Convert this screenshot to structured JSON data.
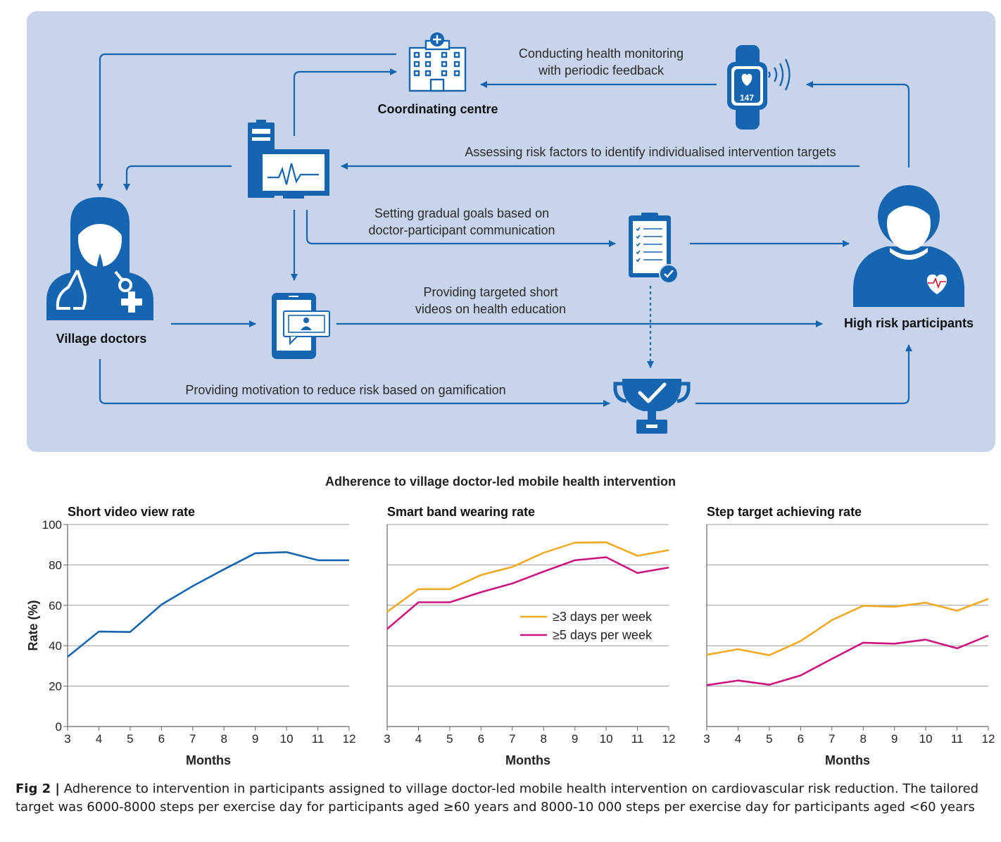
{
  "diagram": {
    "nodes": {
      "coordinating_centre": "Coordinating centre",
      "village_doctors": "Village doctors",
      "high_risk": "High risk participants",
      "watch_value": "147"
    },
    "flows": {
      "monitoring_1": "Conducting health monitoring",
      "monitoring_2": "with periodic feedback",
      "assessing": "Assessing risk factors to identify individualised intervention targets",
      "goals_1": "Setting gradual goals based on",
      "goals_2": "doctor-participant communication",
      "videos_1": "Providing targeted short",
      "videos_2": "videos on health education",
      "motivation": "Providing motivation to reduce risk based on gamification"
    },
    "colors": {
      "panel": "#c8d4ec",
      "accent": "#1565b0",
      "series_orange": "#f0aa22",
      "series_magenta": "#cc1480"
    }
  },
  "charts_title": "Adherence to village doctor-led mobile health intervention",
  "chart_data": [
    {
      "type": "line",
      "title": "Short video view rate",
      "xlabel": "Months",
      "ylabel": "Rate (%)",
      "x": [
        3,
        4,
        5,
        6,
        7,
        8,
        9,
        10,
        11,
        12
      ],
      "ylim": [
        0,
        100
      ],
      "yticks": [
        0,
        20,
        40,
        60,
        80,
        100
      ],
      "grid": true,
      "series": [
        {
          "name": "",
          "color": "#1565b0",
          "values": [
            34.5,
            47,
            46.8,
            60.3,
            69.5,
            77.8,
            85.8,
            86.3,
            82.3,
            82.3
          ]
        }
      ]
    },
    {
      "type": "line",
      "title": "Smart band wearing rate",
      "xlabel": "Months",
      "ylabel": "",
      "x": [
        3,
        4,
        5,
        6,
        7,
        8,
        9,
        10,
        11,
        12
      ],
      "ylim": [
        0,
        100
      ],
      "grid": true,
      "legend": "middle-right",
      "series": [
        {
          "name": "≥3 days per week",
          "color": "#f0aa22",
          "values": [
            56.8,
            68,
            68,
            75,
            79,
            86,
            91,
            91.2,
            84.5,
            87.3
          ]
        },
        {
          "name": "≥5 days per week",
          "color": "#cc1480",
          "values": [
            48.3,
            61.5,
            61.5,
            66.5,
            70.8,
            76.7,
            82.3,
            83.8,
            76,
            78.7
          ]
        }
      ]
    },
    {
      "type": "line",
      "title": "Step target achieving rate",
      "xlabel": "Months",
      "ylabel": "",
      "x": [
        3,
        4,
        5,
        6,
        7,
        8,
        9,
        10,
        11,
        12
      ],
      "ylim": [
        0,
        100
      ],
      "grid": true,
      "series": [
        {
          "name": "",
          "color": "#f0aa22",
          "values": [
            35.5,
            38.3,
            35.3,
            42.3,
            52.7,
            59.8,
            59.3,
            61.3,
            57.3,
            63.2
          ]
        },
        {
          "name": "",
          "color": "#cc1480",
          "values": [
            20.5,
            22.8,
            20.7,
            25.3,
            33.5,
            41.5,
            41,
            43,
            38.7,
            45
          ]
        }
      ]
    }
  ],
  "caption": {
    "fig_label": "Fig 2 |",
    "text": "Adherence to intervention in participants assigned to village doctor-led mobile health intervention on cardiovascular risk reduction. The tailored target was 6000-8000 steps per exercise day for participants aged ≥60 years and 8000-10 000 steps per exercise day for participants aged <60 years"
  }
}
